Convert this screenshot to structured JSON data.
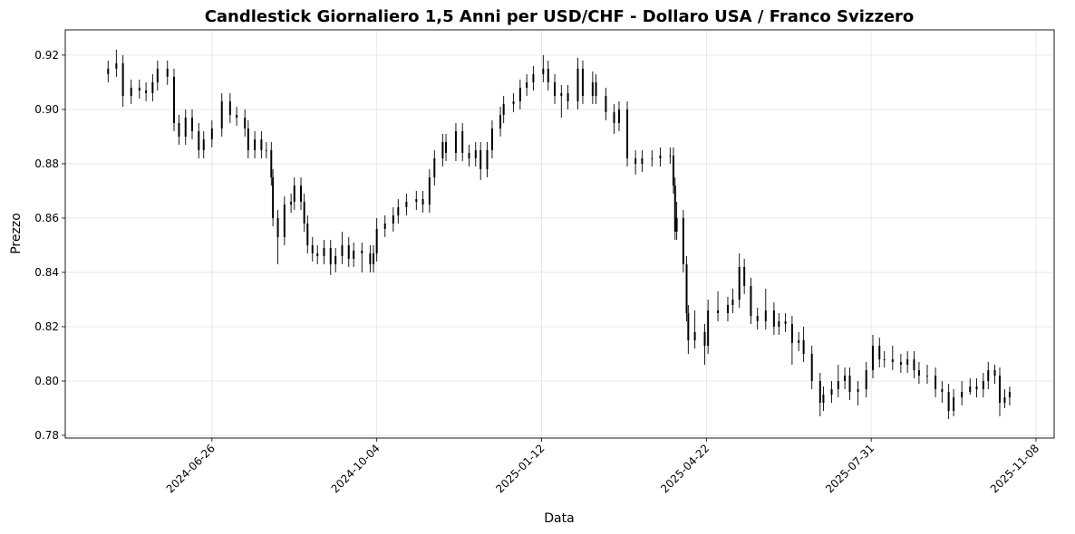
{
  "chart_data": {
    "type": "candlestick",
    "title": "Candlestick Giornaliero 1,5 Anni per USD/CHF - Dollaro USA / Franco Svizzero",
    "x_label": "Data",
    "y_label": "Prezzo",
    "grid": true,
    "color": "#000000",
    "xlim": [
      "2024-03-29",
      "2025-11-19"
    ],
    "xticks": [
      "2024-06-26",
      "2024-10-04",
      "2025-01-12",
      "2025-04-22",
      "2025-07-31",
      "2025-11-08"
    ],
    "ylim": [
      0.779,
      0.9293
    ],
    "yticks": [
      0.78,
      {
        "value": 0.8,
        "label": "0.80"
      },
      0.82,
      0.84,
      0.86,
      0.88,
      {
        "value": 0.9,
        "label": "0.90"
      },
      0.92
    ],
    "x": [
      "2024-04-24",
      "2024-04-29",
      "2024-05-03",
      "2024-05-08",
      "2024-05-13",
      "2024-05-17",
      "2024-05-21",
      "2024-05-24",
      "2024-05-30",
      "2024-06-03",
      "2024-06-06",
      "2024-06-10",
      "2024-06-14",
      "2024-06-18",
      "2024-06-21",
      "2024-06-26",
      "2024-07-02",
      "2024-07-07",
      "2024-07-11",
      "2024-07-16",
      "2024-07-18",
      "2024-07-22",
      "2024-07-26",
      "2024-07-29",
      "2024-08-01",
      "2024-08-02",
      "2024-08-05",
      "2024-08-09",
      "2024-08-13",
      "2024-08-15",
      "2024-08-19",
      "2024-08-21",
      "2024-08-23",
      "2024-08-26",
      "2024-08-29",
      "2024-09-02",
      "2024-09-06",
      "2024-09-09",
      "2024-09-13",
      "2024-09-17",
      "2024-09-20",
      "2024-09-25",
      "2024-09-30",
      "2024-10-02",
      "2024-10-04",
      "2024-10-09",
      "2024-10-14",
      "2024-10-17",
      "2024-10-22",
      "2024-10-28",
      "2024-11-01",
      "2024-11-05",
      "2024-11-08",
      "2024-11-13",
      "2024-11-15",
      "2024-11-21",
      "2024-11-25",
      "2024-11-29",
      "2024-12-03",
      "2024-12-06",
      "2024-12-10",
      "2024-12-13",
      "2024-12-18",
      "2024-12-20",
      "2024-12-26",
      "2024-12-30",
      "2025-01-03",
      "2025-01-07",
      "2025-01-13",
      "2025-01-16",
      "2025-01-20",
      "2025-01-24",
      "2025-01-28",
      "2025-02-03",
      "2025-02-06",
      "2025-02-12",
      "2025-02-14",
      "2025-02-20",
      "2025-02-25",
      "2025-02-28",
      "2025-03-05",
      "2025-03-10",
      "2025-03-14",
      "2025-03-20",
      "2025-03-25",
      "2025-03-31",
      "2025-04-02",
      "2025-04-03",
      "2025-04-04",
      "2025-04-08",
      "2025-04-10",
      "2025-04-11",
      "2025-04-15",
      "2025-04-21",
      "2025-04-23",
      "2025-04-29",
      "2025-05-05",
      "2025-05-08",
      "2025-05-12",
      "2025-05-15",
      "2025-05-19",
      "2025-05-23",
      "2025-05-28",
      "2025-06-02",
      "2025-06-05",
      "2025-06-09",
      "2025-06-13",
      "2025-06-17",
      "2025-06-20",
      "2025-06-25",
      "2025-06-30",
      "2025-07-02",
      "2025-07-07",
      "2025-07-11",
      "2025-07-15",
      "2025-07-18",
      "2025-07-23",
      "2025-07-28",
      "2025-08-01",
      "2025-08-05",
      "2025-08-08",
      "2025-08-13",
      "2025-08-18",
      "2025-08-22",
      "2025-08-26",
      "2025-08-29",
      "2025-09-03",
      "2025-09-08",
      "2025-09-12",
      "2025-09-16",
      "2025-09-19",
      "2025-09-24",
      "2025-09-29",
      "2025-10-03",
      "2025-10-07",
      "2025-10-10",
      "2025-10-14",
      "2025-10-17",
      "2025-10-20",
      "2025-10-23"
    ],
    "open": [
      0.913,
      0.915,
      0.917,
      0.905,
      0.908,
      0.907,
      0.906,
      0.91,
      0.915,
      0.912,
      0.895,
      0.89,
      0.897,
      0.892,
      0.885,
      0.889,
      0.893,
      0.903,
      0.898,
      0.897,
      0.893,
      0.885,
      0.889,
      0.885,
      0.885,
      0.875,
      0.86,
      0.853,
      0.865,
      0.866,
      0.872,
      0.866,
      0.858,
      0.85,
      0.847,
      0.846,
      0.849,
      0.843,
      0.846,
      0.85,
      0.845,
      0.848,
      0.847,
      0.843,
      0.847,
      0.856,
      0.858,
      0.861,
      0.864,
      0.866,
      0.867,
      0.865,
      0.875,
      0.882,
      0.888,
      0.884,
      0.892,
      0.884,
      0.882,
      0.885,
      0.878,
      0.885,
      0.893,
      0.898,
      0.902,
      0.903,
      0.908,
      0.91,
      0.913,
      0.915,
      0.91,
      0.905,
      0.906,
      0.903,
      0.915,
      0.905,
      0.91,
      0.905,
      0.899,
      0.895,
      0.9,
      0.882,
      0.88,
      0.882,
      0.882,
      0.883,
      0.883,
      0.872,
      0.855,
      0.86,
      0.843,
      0.825,
      0.815,
      0.818,
      0.813,
      0.826,
      0.825,
      0.828,
      0.83,
      0.842,
      0.835,
      0.824,
      0.822,
      0.826,
      0.82,
      0.822,
      0.821,
      0.814,
      0.815,
      0.81,
      0.8,
      0.792,
      0.795,
      0.797,
      0.8,
      0.802,
      0.796,
      0.797,
      0.804,
      0.813,
      0.808,
      0.808,
      0.807,
      0.806,
      0.808,
      0.804,
      0.802,
      0.802,
      0.797,
      0.796,
      0.789,
      0.794,
      0.796,
      0.798,
      0.797,
      0.8,
      0.804,
      0.802,
      0.792,
      0.794
    ],
    "high": [
      0.918,
      0.922,
      0.92,
      0.911,
      0.911,
      0.91,
      0.913,
      0.918,
      0.918,
      0.915,
      0.898,
      0.9,
      0.9,
      0.895,
      0.892,
      0.896,
      0.906,
      0.906,
      0.901,
      0.9,
      0.896,
      0.892,
      0.892,
      0.888,
      0.888,
      0.878,
      0.863,
      0.868,
      0.869,
      0.875,
      0.875,
      0.869,
      0.861,
      0.853,
      0.85,
      0.852,
      0.852,
      0.849,
      0.855,
      0.853,
      0.851,
      0.851,
      0.85,
      0.85,
      0.86,
      0.861,
      0.864,
      0.867,
      0.869,
      0.87,
      0.87,
      0.878,
      0.885,
      0.891,
      0.891,
      0.895,
      0.895,
      0.887,
      0.888,
      0.888,
      0.888,
      0.896,
      0.901,
      0.905,
      0.906,
      0.911,
      0.913,
      0.916,
      0.92,
      0.918,
      0.913,
      0.909,
      0.909,
      0.919,
      0.918,
      0.914,
      0.913,
      0.908,
      0.902,
      0.903,
      0.903,
      0.885,
      0.885,
      0.885,
      0.886,
      0.886,
      0.886,
      0.875,
      0.866,
      0.863,
      0.846,
      0.828,
      0.826,
      0.821,
      0.83,
      0.833,
      0.831,
      0.834,
      0.847,
      0.845,
      0.838,
      0.827,
      0.834,
      0.829,
      0.825,
      0.825,
      0.824,
      0.818,
      0.82,
      0.813,
      0.803,
      0.798,
      0.8,
      0.806,
      0.805,
      0.805,
      0.8,
      0.807,
      0.817,
      0.816,
      0.811,
      0.813,
      0.81,
      0.811,
      0.811,
      0.807,
      0.806,
      0.805,
      0.8,
      0.799,
      0.797,
      0.8,
      0.801,
      0.801,
      0.803,
      0.807,
      0.806,
      0.805,
      0.797,
      0.798
    ],
    "low": [
      0.91,
      0.912,
      0.901,
      0.902,
      0.904,
      0.903,
      0.903,
      0.907,
      0.909,
      0.892,
      0.887,
      0.887,
      0.889,
      0.882,
      0.882,
      0.886,
      0.89,
      0.895,
      0.894,
      0.89,
      0.882,
      0.882,
      0.882,
      0.882,
      0.872,
      0.857,
      0.843,
      0.85,
      0.862,
      0.863,
      0.863,
      0.855,
      0.847,
      0.844,
      0.843,
      0.843,
      0.839,
      0.84,
      0.843,
      0.842,
      0.842,
      0.84,
      0.84,
      0.84,
      0.844,
      0.853,
      0.855,
      0.858,
      0.861,
      0.863,
      0.862,
      0.862,
      0.872,
      0.879,
      0.881,
      0.881,
      0.881,
      0.879,
      0.879,
      0.874,
      0.875,
      0.882,
      0.89,
      0.895,
      0.899,
      0.9,
      0.905,
      0.907,
      0.91,
      0.907,
      0.902,
      0.897,
      0.9,
      0.9,
      0.902,
      0.902,
      0.902,
      0.896,
      0.891,
      0.892,
      0.879,
      0.876,
      0.877,
      0.879,
      0.879,
      0.88,
      0.869,
      0.852,
      0.852,
      0.84,
      0.822,
      0.81,
      0.812,
      0.806,
      0.81,
      0.822,
      0.822,
      0.825,
      0.827,
      0.832,
      0.821,
      0.819,
      0.819,
      0.817,
      0.817,
      0.818,
      0.806,
      0.811,
      0.807,
      0.797,
      0.787,
      0.789,
      0.792,
      0.794,
      0.797,
      0.793,
      0.791,
      0.794,
      0.801,
      0.805,
      0.805,
      0.804,
      0.803,
      0.803,
      0.801,
      0.799,
      0.799,
      0.794,
      0.792,
      0.786,
      0.787,
      0.791,
      0.795,
      0.794,
      0.794,
      0.797,
      0.799,
      0.787,
      0.79,
      0.791
    ],
    "close": [
      0.915,
      0.917,
      0.905,
      0.908,
      0.907,
      0.906,
      0.91,
      0.915,
      0.912,
      0.895,
      0.89,
      0.897,
      0.892,
      0.885,
      0.889,
      0.893,
      0.903,
      0.898,
      0.897,
      0.893,
      0.885,
      0.889,
      0.885,
      0.885,
      0.875,
      0.86,
      0.853,
      0.865,
      0.866,
      0.872,
      0.866,
      0.858,
      0.85,
      0.847,
      0.846,
      0.849,
      0.843,
      0.846,
      0.85,
      0.845,
      0.848,
      0.847,
      0.843,
      0.847,
      0.856,
      0.858,
      0.861,
      0.864,
      0.866,
      0.867,
      0.865,
      0.875,
      0.882,
      0.888,
      0.884,
      0.892,
      0.884,
      0.882,
      0.885,
      0.878,
      0.885,
      0.893,
      0.898,
      0.902,
      0.903,
      0.908,
      0.91,
      0.913,
      0.915,
      0.91,
      0.905,
      0.906,
      0.903,
      0.915,
      0.905,
      0.91,
      0.905,
      0.899,
      0.895,
      0.9,
      0.882,
      0.88,
      0.882,
      0.882,
      0.883,
      0.883,
      0.872,
      0.855,
      0.86,
      0.843,
      0.825,
      0.815,
      0.818,
      0.813,
      0.826,
      0.825,
      0.828,
      0.83,
      0.842,
      0.835,
      0.824,
      0.822,
      0.826,
      0.82,
      0.822,
      0.821,
      0.814,
      0.815,
      0.81,
      0.8,
      0.792,
      0.795,
      0.797,
      0.8,
      0.802,
      0.796,
      0.797,
      0.804,
      0.813,
      0.808,
      0.808,
      0.807,
      0.806,
      0.808,
      0.804,
      0.802,
      0.802,
      0.797,
      0.796,
      0.789,
      0.794,
      0.796,
      0.798,
      0.797,
      0.8,
      0.804,
      0.802,
      0.792,
      0.794,
      0.796
    ]
  }
}
